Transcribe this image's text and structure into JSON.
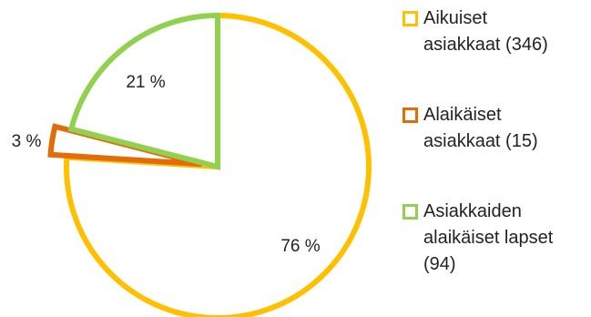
{
  "chart_data": {
    "type": "pie",
    "title": "",
    "slices": [
      {
        "label": "Aikuiset asiakkaat (346)",
        "value": 76,
        "display": "76 %",
        "color": "#FFC000"
      },
      {
        "label": "Alaikäiset asiakkaat (15)",
        "value": 3,
        "display": "3 %",
        "color": "#E36C09"
      },
      {
        "label": "Asiakkaiden alaikäiset lapset (94)",
        "value": 21,
        "display": "21 %",
        "color": "#92D050"
      }
    ],
    "fill": "#FFFFFF",
    "legend_position": "right"
  },
  "legend": {
    "items": [
      {
        "line1": "Aikuiset",
        "line2": "asiakkaat (346)",
        "line3": ""
      },
      {
        "line1": "Alaikäiset",
        "line2": "asiakkaat (15)",
        "line3": ""
      },
      {
        "line1": "Asiakkaiden",
        "line2": "alaikäiset lapset",
        "line3": "(94)"
      }
    ]
  }
}
